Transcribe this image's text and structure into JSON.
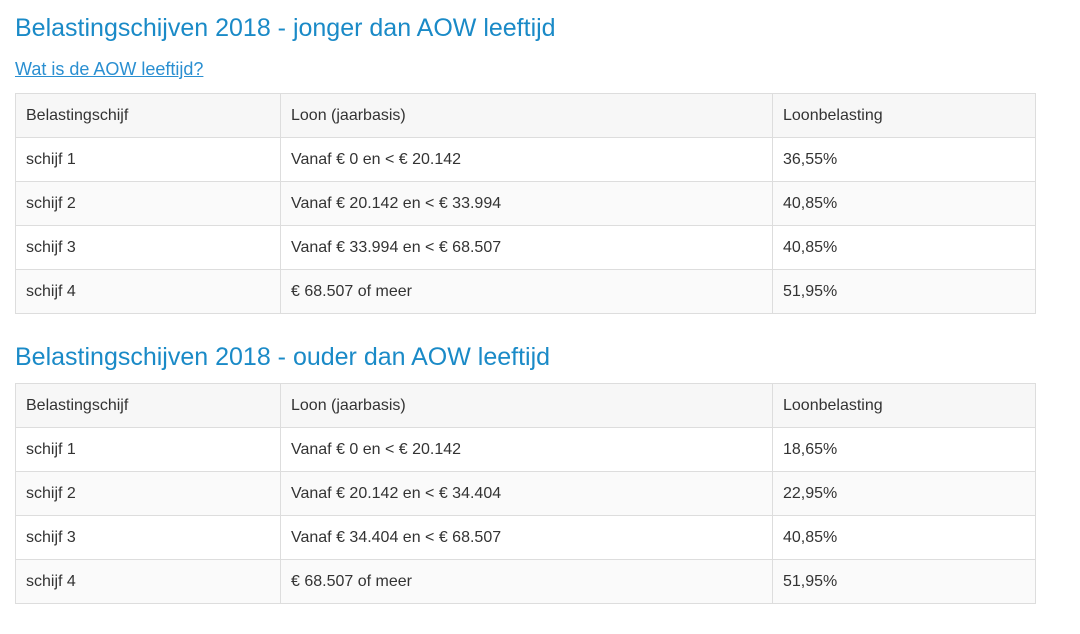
{
  "section1": {
    "title": "Belastingschijven 2018 - jonger dan AOW leeftijd",
    "link": "Wat is de AOW leeftijd?",
    "headers": [
      "Belastingschijf",
      "Loon (jaarbasis)",
      "Loonbelasting"
    ],
    "rows": [
      [
        "schijf 1",
        "Vanaf € 0 en < € 20.142",
        "36,55%"
      ],
      [
        "schijf 2",
        "Vanaf € 20.142 en < € 33.994",
        "40,85%"
      ],
      [
        "schijf 3",
        "Vanaf € 33.994 en < € 68.507",
        "40,85%"
      ],
      [
        "schijf 4",
        "€ 68.507 of meer",
        "51,95%"
      ]
    ]
  },
  "section2": {
    "title": "Belastingschijven 2018 - ouder dan AOW leeftijd",
    "headers": [
      "Belastingschijf",
      "Loon (jaarbasis)",
      "Loonbelasting"
    ],
    "rows": [
      [
        "schijf 1",
        "Vanaf € 0 en < € 20.142",
        "18,65%"
      ],
      [
        "schijf 2",
        "Vanaf € 20.142 en < € 34.404",
        "22,95%"
      ],
      [
        "schijf 3",
        "Vanaf € 34.404 en < € 68.507",
        "40,85%"
      ],
      [
        "schijf 4",
        "€ 68.507 of meer",
        "51,95%"
      ]
    ]
  },
  "colors": {
    "title": "#1a8ac7",
    "link": "#2a8fd1",
    "border": "#dddddd",
    "text": "#333333"
  }
}
